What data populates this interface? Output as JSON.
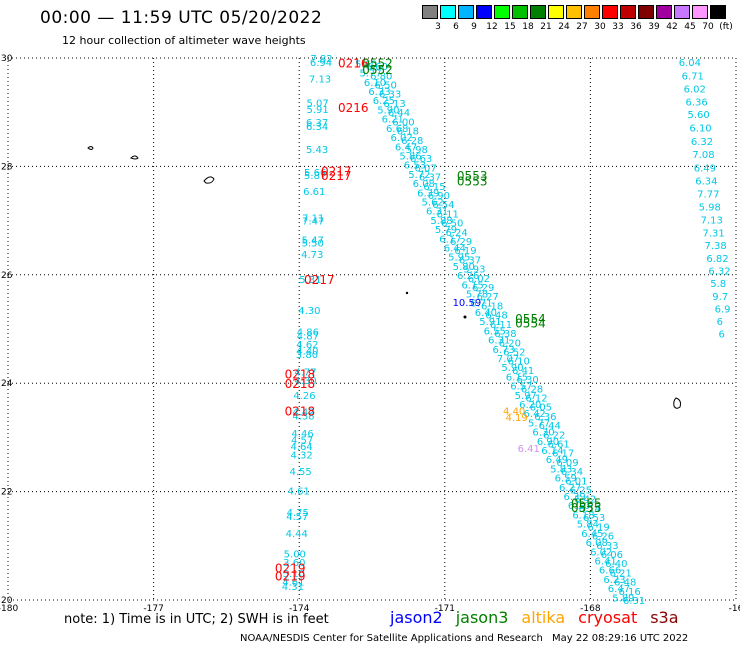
{
  "title": "00:00 — 11:59 UTC 05/20/2022",
  "subtitle": "12 hour collection of altimeter wave heights",
  "legend": {
    "colors": [
      "#808080",
      "#00ffff",
      "#00b4ff",
      "#0000ff",
      "#00ff00",
      "#00c000",
      "#008000",
      "#ffff00",
      "#ffc000",
      "#ff8000",
      "#ff0000",
      "#c00000",
      "#800000",
      "#a000a0",
      "#c878ff",
      "#ff96ff",
      "#000000"
    ],
    "labels": [
      "3",
      "6",
      "9",
      "12",
      "15",
      "18",
      "21",
      "24",
      "27",
      "30",
      "33",
      "36",
      "39",
      "42",
      "45",
      "70",
      "(ft)"
    ]
  },
  "axes": {
    "x_ticks": [
      "-180",
      "-177",
      "-174",
      "-171",
      "-168",
      "-16"
    ],
    "y_ticks": [
      "30",
      "28",
      "26",
      "24",
      "22",
      "20"
    ]
  },
  "colors": {
    "jason2": "#0000ff",
    "jason3": "#008000",
    "altika": "#ffa500",
    "cryosat": "#ff0000",
    "s3a": "#8b0000",
    "wave": "#00c8e6"
  },
  "passes": [
    {
      "label": "0216",
      "sat": "cryosat",
      "lon": -173.2,
      "lat": 29.92
    },
    {
      "label": "0552",
      "sat": "jason3",
      "lon": -172.7,
      "lat": 29.92
    },
    {
      "label": "0552",
      "sat": "jason3",
      "lon": -172.7,
      "lat": 29.8
    },
    {
      "label": "0216",
      "sat": "cryosat",
      "lon": -173.2,
      "lat": 29.1
    },
    {
      "label": "0217",
      "sat": "cryosat",
      "lon": -173.55,
      "lat": 27.92
    },
    {
      "label": "0217",
      "sat": "cryosat",
      "lon": -173.55,
      "lat": 27.84
    },
    {
      "label": "0553",
      "sat": "jason3",
      "lon": -170.75,
      "lat": 27.84
    },
    {
      "label": "0553",
      "sat": "jason3",
      "lon": -170.75,
      "lat": 27.74
    },
    {
      "label": "0217",
      "sat": "cryosat",
      "lon": -173.9,
      "lat": 25.92
    },
    {
      "label": "0554",
      "sat": "jason3",
      "lon": -169.55,
      "lat": 25.2
    },
    {
      "label": "0554",
      "sat": "jason3",
      "lon": -169.55,
      "lat": 25.12
    },
    {
      "label": "0218",
      "sat": "cryosat",
      "lon": -174.3,
      "lat": 24.18
    },
    {
      "label": "0218",
      "sat": "cryosat",
      "lon": -174.3,
      "lat": 24.0
    },
    {
      "label": "0218",
      "sat": "cryosat",
      "lon": -174.3,
      "lat": 23.5
    },
    {
      "label": "0555",
      "sat": "jason3",
      "lon": -168.4,
      "lat": 21.8
    },
    {
      "label": "0555",
      "sat": "jason3",
      "lon": -168.4,
      "lat": 21.72
    },
    {
      "label": "0219",
      "sat": "cryosat",
      "lon": -174.5,
      "lat": 20.6
    },
    {
      "label": "0219",
      "sat": "cryosat",
      "lon": -174.5,
      "lat": 20.45
    }
  ],
  "left_track": [
    {
      "v": "7.82",
      "lon": -173.77,
      "lat": 30.0
    },
    {
      "v": "6.94",
      "lon": -173.78,
      "lat": 29.93
    },
    {
      "v": "7.13",
      "lon": -173.8,
      "lat": 29.62
    },
    {
      "v": "5.07",
      "lon": -173.85,
      "lat": 29.18
    },
    {
      "v": "5.91",
      "lon": -173.85,
      "lat": 29.06
    },
    {
      "v": "6.37",
      "lon": -173.86,
      "lat": 28.82
    },
    {
      "v": "6.34",
      "lon": -173.86,
      "lat": 28.75
    },
    {
      "v": "5.43",
      "lon": -173.86,
      "lat": 28.32
    },
    {
      "v": "5.66",
      "lon": -173.9,
      "lat": 27.9
    },
    {
      "v": "5.87",
      "lon": -173.9,
      "lat": 27.84
    },
    {
      "v": "6.61",
      "lon": -173.92,
      "lat": 27.55
    },
    {
      "v": "7.11",
      "lon": -173.94,
      "lat": 27.06
    },
    {
      "v": "7.47",
      "lon": -173.94,
      "lat": 27.0
    },
    {
      "v": "5.47",
      "lon": -173.95,
      "lat": 26.65
    },
    {
      "v": "5.50",
      "lon": -173.95,
      "lat": 26.6
    },
    {
      "v": "4.73",
      "lon": -173.96,
      "lat": 26.38
    },
    {
      "v": "5.31",
      "lon": -174.0,
      "lat": 25.92
    },
    {
      "v": "4.30",
      "lon": -174.02,
      "lat": 25.35
    },
    {
      "v": "4.86",
      "lon": -174.05,
      "lat": 24.95
    },
    {
      "v": "4.87",
      "lon": -174.05,
      "lat": 24.88
    },
    {
      "v": "4.62",
      "lon": -174.06,
      "lat": 24.72
    },
    {
      "v": "4.40",
      "lon": -174.06,
      "lat": 24.6
    },
    {
      "v": "3.80",
      "lon": -174.07,
      "lat": 24.54
    },
    {
      "v": "4.77",
      "lon": -174.1,
      "lat": 24.22
    },
    {
      "v": "4.30",
      "lon": -174.1,
      "lat": 24.06
    },
    {
      "v": "4.26",
      "lon": -174.12,
      "lat": 23.78
    },
    {
      "v": "4.42",
      "lon": -174.14,
      "lat": 23.48
    },
    {
      "v": "4.38",
      "lon": -174.14,
      "lat": 23.4
    },
    {
      "v": "4.46",
      "lon": -174.16,
      "lat": 23.08
    },
    {
      "v": "4.57",
      "lon": -174.17,
      "lat": 22.96
    },
    {
      "v": "4.64",
      "lon": -174.18,
      "lat": 22.84
    },
    {
      "v": "4.32",
      "lon": -174.18,
      "lat": 22.68
    },
    {
      "v": "4.55",
      "lon": -174.2,
      "lat": 22.38
    },
    {
      "v": "4.61",
      "lon": -174.24,
      "lat": 22.02
    },
    {
      "v": "4.75",
      "lon": -174.26,
      "lat": 21.62
    },
    {
      "v": "4.57",
      "lon": -174.27,
      "lat": 21.55
    },
    {
      "v": "4.44",
      "lon": -174.28,
      "lat": 21.24
    },
    {
      "v": "5.00",
      "lon": -174.32,
      "lat": 20.86
    },
    {
      "v": "3.60",
      "lon": -174.33,
      "lat": 20.7
    },
    {
      "v": "5.10",
      "lon": -174.34,
      "lat": 20.5
    },
    {
      "v": "4.61",
      "lon": -174.35,
      "lat": 20.34
    },
    {
      "v": "4.31",
      "lon": -174.36,
      "lat": 20.26
    }
  ],
  "right_track": [
    {
      "v": "6.04",
      "lon": -166.18,
      "lat": 29.93
    },
    {
      "v": "6.71",
      "lon": -166.12,
      "lat": 29.68
    },
    {
      "v": "6.02",
      "lon": -166.08,
      "lat": 29.44
    },
    {
      "v": "6.36",
      "lon": -166.04,
      "lat": 29.2
    },
    {
      "v": "5.60",
      "lon": -166.0,
      "lat": 28.97
    },
    {
      "v": "6.10",
      "lon": -165.96,
      "lat": 28.72
    },
    {
      "v": "6.32",
      "lon": -165.93,
      "lat": 28.47
    },
    {
      "v": "7.08",
      "lon": -165.9,
      "lat": 28.23
    },
    {
      "v": "6.49",
      "lon": -165.87,
      "lat": 27.98
    },
    {
      "v": "6.34",
      "lon": -165.84,
      "lat": 27.74
    },
    {
      "v": "7.77",
      "lon": -165.8,
      "lat": 27.5
    },
    {
      "v": "5.98",
      "lon": -165.77,
      "lat": 27.26
    },
    {
      "v": "7.13",
      "lon": -165.73,
      "lat": 27.02
    },
    {
      "v": "7.31",
      "lon": -165.69,
      "lat": 26.78
    },
    {
      "v": "7.38",
      "lon": -165.65,
      "lat": 26.55
    },
    {
      "v": "6.82",
      "lon": -165.61,
      "lat": 26.31
    },
    {
      "v": "6.32",
      "lon": -165.57,
      "lat": 26.08
    },
    {
      "v": "5.8",
      "lon": -165.53,
      "lat": 25.85
    },
    {
      "v": "9.7",
      "lon": -165.49,
      "lat": 25.61
    },
    {
      "v": "6.9",
      "lon": -165.44,
      "lat": 25.38
    },
    {
      "v": "6",
      "lon": -165.4,
      "lat": 25.15
    },
    {
      "v": "6",
      "lon": -165.36,
      "lat": 24.92
    }
  ],
  "diagonal_track": [
    "5.60",
    "5.77",
    "6.10",
    "6.33",
    "6.25",
    "5.90",
    "6.21",
    "6.68",
    "6.02",
    "6.47",
    "5.86",
    "6.53",
    "5.72",
    "6.08",
    "6.39",
    "5.62",
    "6.31",
    "5.88",
    "5.79",
    "6.17",
    "6.44",
    "5.95",
    "5.80",
    "6.26",
    "6.15",
    "5.78",
    "6.71",
    "6.40",
    "5.91",
    "6.55",
    "6.31",
    "6.73",
    "7.07",
    "5.90",
    "6.15",
    "6.57",
    "5.97",
    "6.20",
    "6.42",
    "5.77",
    "6.30",
    "6.90",
    "6.14",
    "6.49",
    "5.83",
    "6.59",
    "6.27",
    "6.39",
    "6.10",
    "6.18",
    "5.84",
    "6.45",
    "6.08",
    "6.02",
    "6.41",
    "6.66",
    "6.23",
    "6.47",
    "5.89",
    "6.60",
    "6.80",
    "6.50",
    "6.33",
    "6.13",
    "6.44",
    "6.00",
    "6.18",
    "6.28",
    "5.98",
    "6.63",
    "6.07",
    "6.37",
    "6.15",
    "6.90",
    "6.54",
    "6.11",
    "6.50",
    "6.24",
    "6.29",
    "6.19",
    "6.37",
    "5.93",
    "6.02",
    "6.29",
    "6.27",
    "6.18",
    "6.48",
    "6.11",
    "6.38",
    "6.20",
    "6.52",
    "6.10",
    "6.41",
    "6.30",
    "6.28",
    "6.12",
    "6.05",
    "6.36",
    "6.44",
    "6.22",
    "6.61",
    "6.17",
    "6.09",
    "6.34",
    "6.01",
    "6.25",
    "6.42",
    "6.14",
    "6.53",
    "6.19",
    "6.26",
    "6.33",
    "6.06",
    "6.40",
    "6.21",
    "6.48",
    "6.16",
    "6.31"
  ],
  "special_points": [
    {
      "v": "10.59",
      "sat": "jason2",
      "lon": -170.84,
      "lat": 25.5
    },
    {
      "v": "4.40",
      "sat": "altika",
      "lon": -169.8,
      "lat": 23.5
    },
    {
      "v": "4.19",
      "sat": "altika",
      "lon": -169.75,
      "lat": 23.38
    },
    {
      "v": "6.41",
      "sat": "violet",
      "lon": -169.5,
      "lat": 22.8
    }
  ],
  "footnote": "note: 1) Time is in UTC; 2) SWH is in feet",
  "satellites": [
    {
      "name": "jason2",
      "key": "jason2"
    },
    {
      "name": "jason3",
      "key": "jason3"
    },
    {
      "name": "altika",
      "key": "altika"
    },
    {
      "name": "cryosat",
      "key": "cryosat"
    },
    {
      "name": "s3a",
      "key": "s3a"
    }
  ],
  "credit": "NOAA/NESDIS Center for Satellite Applications and Research",
  "timestamp": "May 22 08:29:16 UTC 2022"
}
